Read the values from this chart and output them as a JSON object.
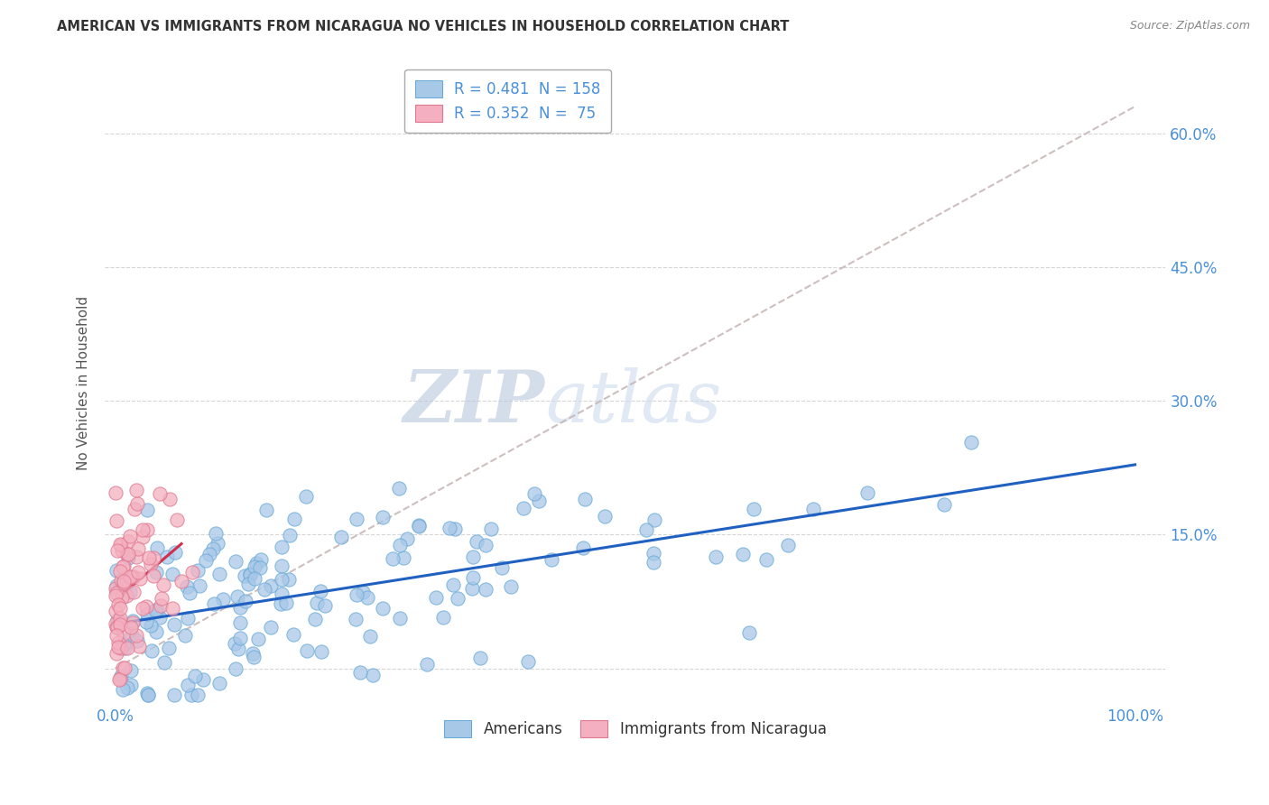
{
  "title": "AMERICAN VS IMMIGRANTS FROM NICARAGUA NO VEHICLES IN HOUSEHOLD CORRELATION CHART",
  "source": "Source: ZipAtlas.com",
  "ylabel": "No Vehicles in Household",
  "R_american": 0.481,
  "N_american": 158,
  "R_nicaragua": 0.352,
  "N_nicaragua": 75,
  "xlim": [
    -0.01,
    1.03
  ],
  "ylim": [
    -0.04,
    0.68
  ],
  "yticks": [
    0.0,
    0.15,
    0.3,
    0.45,
    0.6
  ],
  "ytick_labels": [
    "",
    "15.0%",
    "30.0%",
    "45.0%",
    "60.0%"
  ],
  "xtick_labels_left": "0.0%",
  "xtick_labels_right": "100.0%",
  "american_color": "#a8c8e8",
  "nicaragua_color": "#f4b0c0",
  "american_edge": "#6aaad8",
  "nicaragua_edge": "#e07890",
  "trendline_american_color": "#2060c0",
  "trendline_nicaragua_color": "#d03050",
  "trendline_gray_color": "#c8b8b8",
  "watermark_zip": "ZIP",
  "watermark_atlas": "atlas",
  "watermark_color": "#ccd8e8",
  "background": "#ffffff",
  "grid_color": "#cccccc",
  "legend_label_color": "#4a90d9",
  "tick_color": "#4a90d9",
  "title_color": "#333333",
  "source_color": "#888888",
  "ylabel_color": "#555555"
}
